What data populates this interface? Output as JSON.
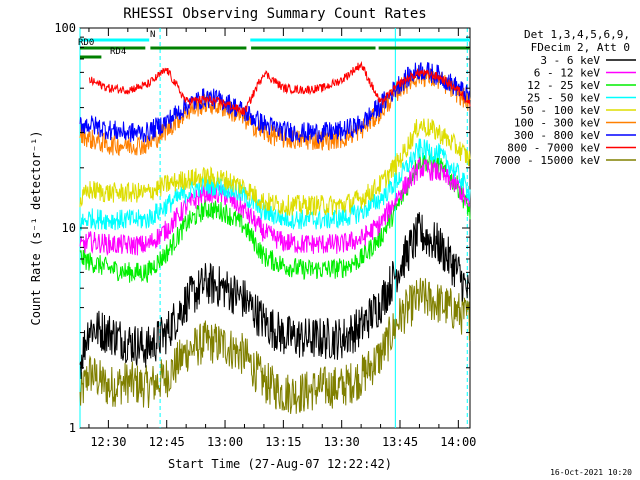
{
  "chart_data": {
    "type": "line",
    "title": "RHESSI Observing Summary Count Rates",
    "xlabel": "Start Time (27-Aug-07 12:22:42)",
    "ylabel": "Count Rate (s⁻¹ detector⁻¹)",
    "yscale": "log",
    "ylim": [
      1,
      100
    ],
    "xlim_minutes_of_day": [
      742.7,
      843.0
    ],
    "x_ticks": [
      "12:30",
      "12:45",
      "13:00",
      "13:15",
      "13:30",
      "13:45",
      "14:00"
    ],
    "y_ticks": [
      "1",
      "10",
      "100"
    ],
    "legend": {
      "placement": "right",
      "header": [
        "Det 1,3,4,5,6,9,",
        "FDecim 2, Att 0"
      ],
      "entries": [
        {
          "label": "3 - 6 keV",
          "color": "#000000"
        },
        {
          "label": "6 - 12 keV",
          "color": "#ff00ff"
        },
        {
          "label": "12 - 25 keV",
          "color": "#00ee00"
        },
        {
          "label": "25 - 50 keV",
          "color": "#00ffff"
        },
        {
          "label": "50 - 100 keV",
          "color": "#dddd00"
        },
        {
          "label": "100 - 300 keV",
          "color": "#ff8000"
        },
        {
          "label": "300 - 800 keV",
          "color": "#0000ff"
        },
        {
          "label": "800 - 7000 keV",
          "color": "#ff0000"
        },
        {
          "label": "7000 - 15000 keV",
          "color": "#808000"
        }
      ]
    },
    "flags": [
      {
        "label": "N",
        "color": "#00ffff",
        "segments": [
          [
            742.7,
            760.5
          ],
          [
            786.5,
            843.0
          ]
        ]
      },
      {
        "label": "RD0",
        "color": "#008000",
        "segments": [
          [
            742.7,
            759.5
          ],
          [
            760.8,
            785.5
          ],
          [
            786.7,
            818.7
          ],
          [
            819.5,
            843.0
          ]
        ]
      },
      {
        "label": "RD4",
        "color": "#008000",
        "segments": [
          [
            742.7,
            748.2
          ]
        ]
      }
    ],
    "vertical_markers": [
      {
        "x": 742.7,
        "color": "#00ffff",
        "style": "solid"
      },
      {
        "x": 763.3,
        "color": "#00ffff",
        "style": "dashed"
      },
      {
        "x": 823.8,
        "color": "#00ffff",
        "style": "solid"
      },
      {
        "x": 842.3,
        "color": "#00ffff",
        "style": "dashed"
      }
    ],
    "series_profile": {
      "x": [
        742.7,
        745,
        750,
        755,
        760,
        765,
        770,
        775,
        780,
        785,
        790,
        795,
        800,
        805,
        810,
        815,
        820,
        825,
        830,
        835,
        840,
        843
      ],
      "bands": [
        {
          "name": "3 - 6 keV",
          "values": [
            2.1,
            3.2,
            3.0,
            2.7,
            2.5,
            3.0,
            4.3,
            5.3,
            5.0,
            4.4,
            3.4,
            2.9,
            2.8,
            2.8,
            2.8,
            3.2,
            4.2,
            6.5,
            9.5,
            8.2,
            6.0,
            4.5
          ]
        },
        {
          "name": "6 - 12 keV",
          "values": [
            8.0,
            8.6,
            8.3,
            8.2,
            8.2,
            9.8,
            12.8,
            15.2,
            14.5,
            12.3,
            9.5,
            8.5,
            8.3,
            8.3,
            8.3,
            8.8,
            10.5,
            15.0,
            20.0,
            19.0,
            16.0,
            12.5
          ]
        },
        {
          "name": "12 - 25 keV",
          "values": [
            7.2,
            6.8,
            6.3,
            6.0,
            6.0,
            7.5,
            10.5,
            12.5,
            12.0,
            10.2,
            7.2,
            6.5,
            6.2,
            6.2,
            6.3,
            7.0,
            9.0,
            13.5,
            22.0,
            20.5,
            16.0,
            12.0
          ]
        },
        {
          "name": "25 - 50 keV",
          "values": [
            10.5,
            11.2,
            11.0,
            11.0,
            11.0,
            13.0,
            15.0,
            16.5,
            16.0,
            14.5,
            12.0,
            11.2,
            11.0,
            11.0,
            11.2,
            12.0,
            14.0,
            18.0,
            25.0,
            23.5,
            18.5,
            15.0
          ]
        },
        {
          "name": "50 - 100 keV",
          "values": [
            13.5,
            15.5,
            15.0,
            15.0,
            15.0,
            16.5,
            17.5,
            18.0,
            17.5,
            16.0,
            13.5,
            13.0,
            13.0,
            13.0,
            13.0,
            14.0,
            16.5,
            22.0,
            33.0,
            30.0,
            25.0,
            22.0
          ]
        },
        {
          "name": "100 - 300 keV",
          "values": [
            30.0,
            28.0,
            26.0,
            26.0,
            26.0,
            31.0,
            38.0,
            42.0,
            40.0,
            35.0,
            30.0,
            28.0,
            27.5,
            27.5,
            28.0,
            31.0,
            38.0,
            50.0,
            58.0,
            55.0,
            47.0,
            42.0
          ]
        },
        {
          "name": "300 - 800 keV",
          "values": [
            33.0,
            33.0,
            31.0,
            30.0,
            30.0,
            34.0,
            41.0,
            45.0,
            43.0,
            38.0,
            33.0,
            30.5,
            30.0,
            30.0,
            30.5,
            33.0,
            41.0,
            53.0,
            62.0,
            58.0,
            50.0,
            45.0
          ]
        },
        {
          "name": "800 - 7000 keV",
          "values": [
            null,
            55.0,
            50.0,
            49.0,
            52.0,
            62.0,
            43.0,
            44.0,
            42.0,
            38.0,
            60.0,
            50.0,
            49.0,
            50.0,
            55.0,
            66.0,
            42.0,
            53.0,
            60.0,
            57.0,
            49.0,
            42.0
          ]
        },
        {
          "name": "7000 - 15000 keV",
          "values": [
            1.4,
            1.9,
            1.6,
            1.7,
            1.6,
            1.8,
            2.4,
            2.7,
            2.6,
            2.3,
            1.7,
            1.5,
            1.5,
            1.6,
            1.6,
            1.8,
            2.3,
            3.6,
            4.5,
            4.2,
            3.8,
            3.5
          ]
        }
      ]
    }
  },
  "footer": {
    "date_stamp": "16-Oct-2021 10:20"
  }
}
